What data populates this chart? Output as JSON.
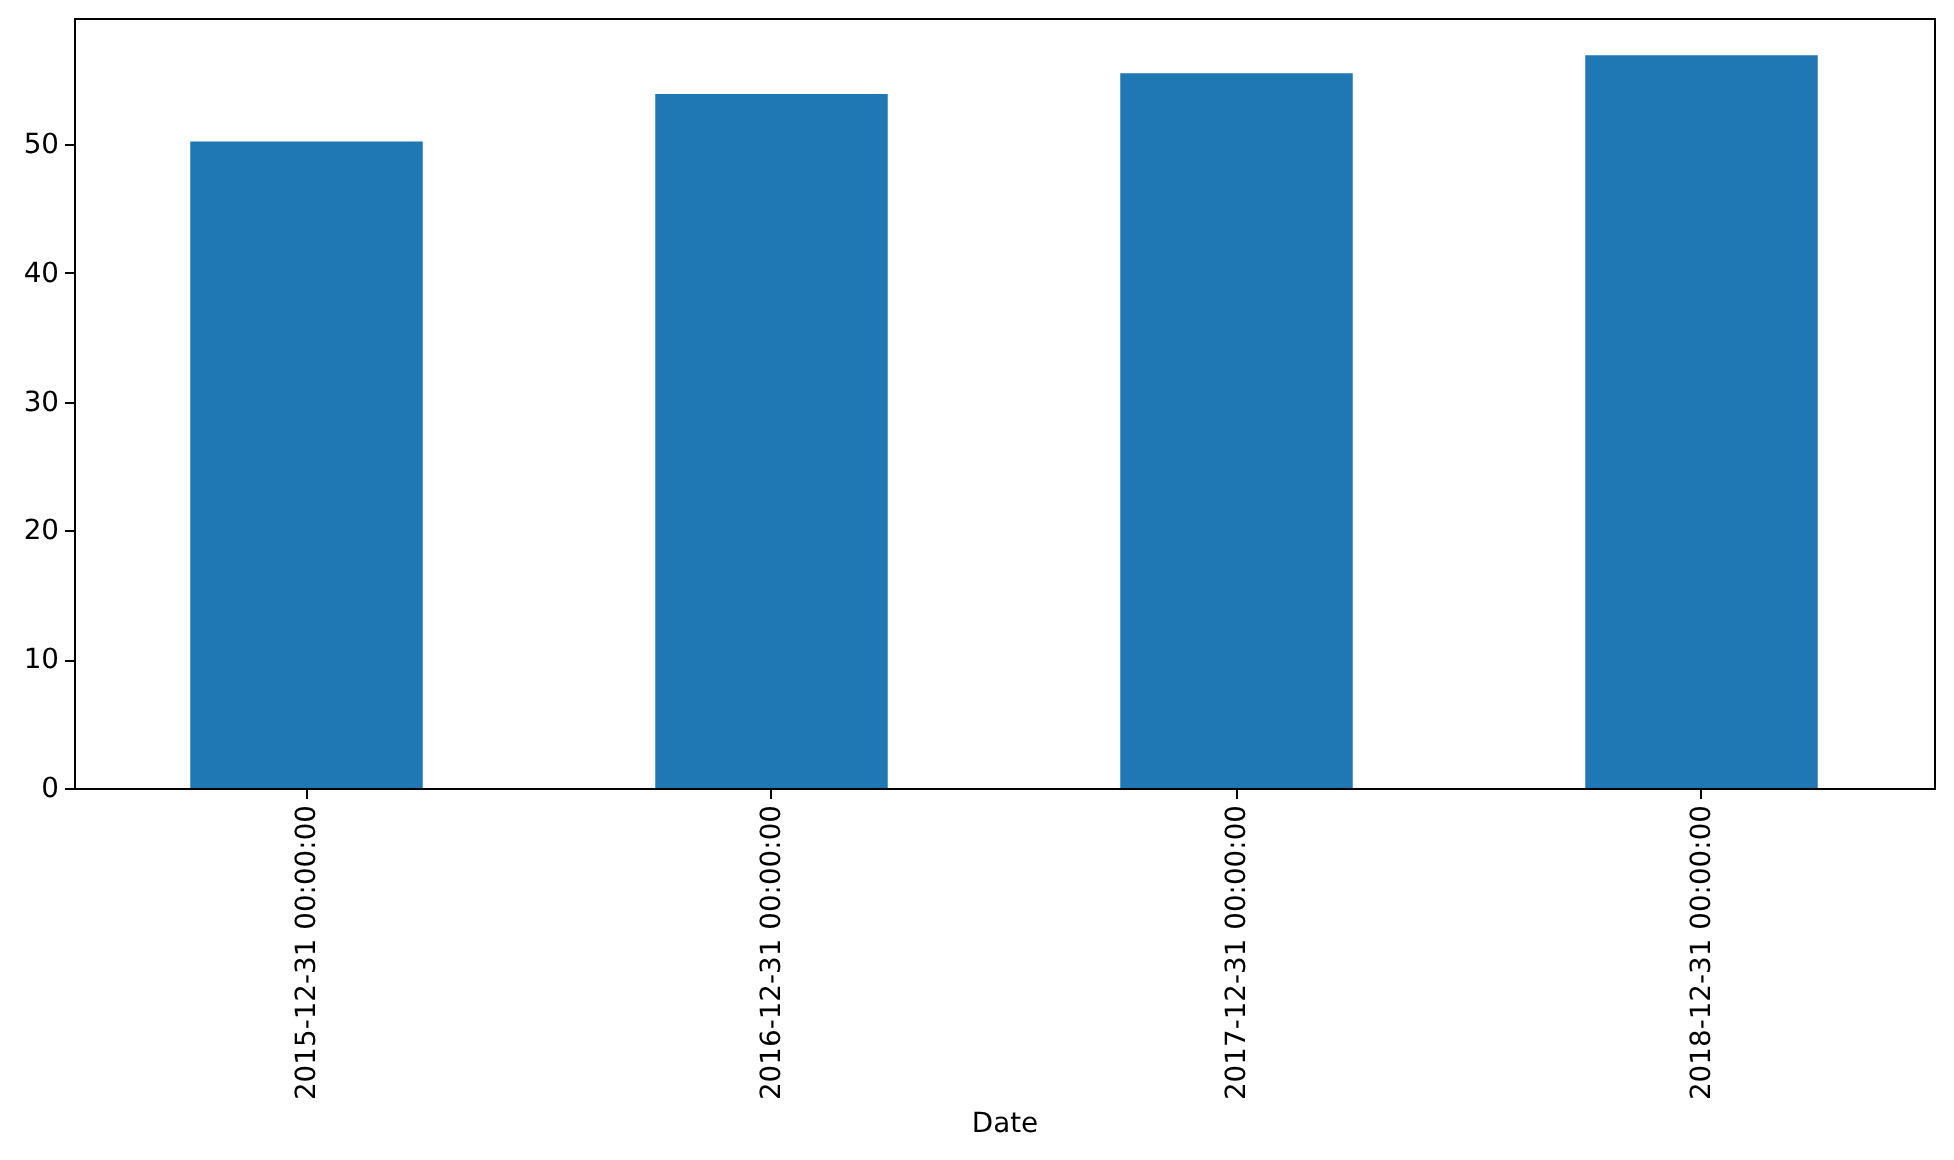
{
  "chart_data": {
    "type": "bar",
    "xlabel": "Date",
    "categories": [
      "2015-12-31 00:00:00",
      "2016-12-31 00:00:00",
      "2017-12-31 00:00:00",
      "2018-12-31 00:00:00"
    ],
    "values": [
      50.2,
      53.9,
      55.5,
      56.9
    ],
    "color": "#1f77b4",
    "ylim": [
      0,
      59.8
    ],
    "yticks": [
      0,
      10,
      20,
      30,
      40,
      50
    ],
    "grid": false
  }
}
